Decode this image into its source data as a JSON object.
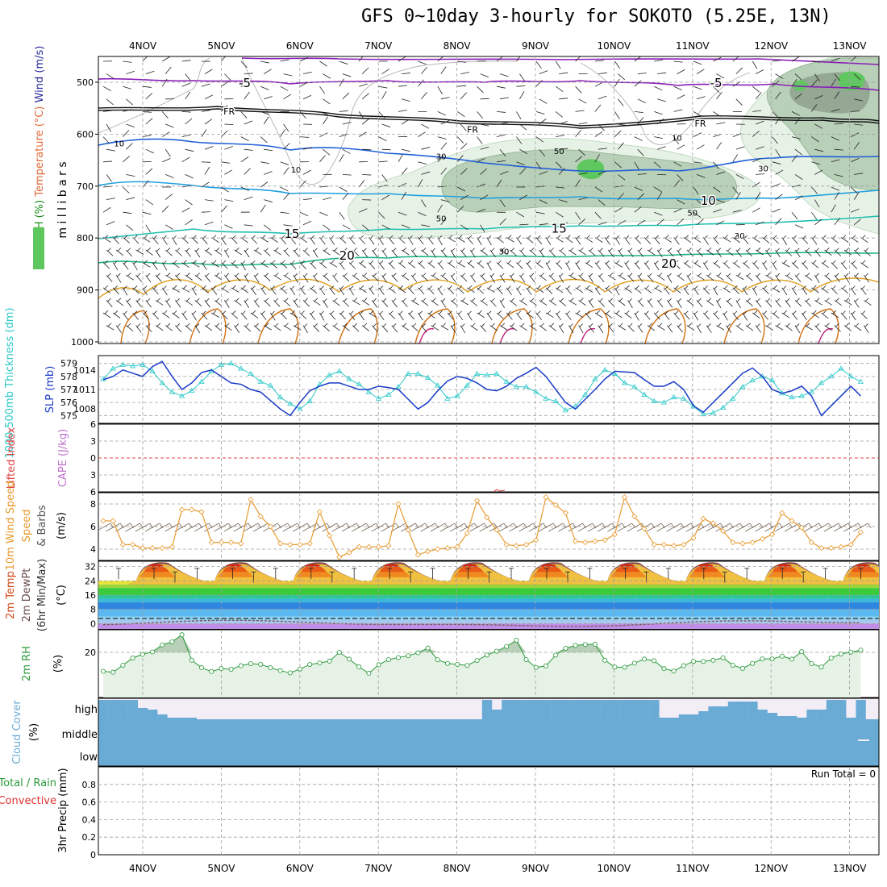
{
  "title": "GFS 0~10day 3-hourly for SOKOTO (5.25E, 13N)",
  "dates": [
    "4NOV",
    "5NOV",
    "6NOV",
    "7NOV",
    "8NOV",
    "9NOV",
    "10NOV",
    "11NOV",
    "12NOV",
    "13NOV"
  ],
  "colors": {
    "rh_light": "#e6f2e6",
    "rh_mid": "#b8cfb8",
    "rh_dark": "#94a894",
    "rh_green": "#5ec85e",
    "temp_purple": "#8a1fb8",
    "temp_black": "#111111",
    "temp_blue": "#1f5fd8",
    "temp_lblue": "#1fa0e0",
    "temp_teal": "#1fbfb0",
    "temp_green": "#1fb38a",
    "temp_orange": "#e0a020",
    "temp_dorange": "#d07010",
    "slp": "#1a3cc8",
    "thick": "#2ec8c8",
    "wind": "#e89a30",
    "rh2m": "#2a9a3a",
    "cloud": "#6aabd6",
    "cloud_bg": "#f3eef6",
    "lifted": "#e04040",
    "cape": "#c070d0"
  },
  "chart_data": [
    {
      "panel": "upper-air",
      "type": "contour",
      "ylabel_parts": [
        "RH (%)",
        "Temperature (°C)",
        "Wind (m/s)"
      ],
      "yunit": "m i l l i b a r s",
      "yticks": [
        500,
        600,
        700,
        800,
        900,
        1000
      ],
      "ylim": [
        1000,
        450
      ],
      "contour_labels": [
        {
          "text": "-5",
          "level": "-5",
          "day": 1.3,
          "p": 500
        },
        {
          "text": "-5",
          "level": "-5",
          "day": 7.3,
          "p": 500
        },
        {
          "text": "FR",
          "level": "0",
          "day": 1.1,
          "p": 553
        },
        {
          "text": "FR",
          "level": "0",
          "day": 4.2,
          "p": 588
        },
        {
          "text": "FR",
          "level": "0",
          "day": 7.1,
          "p": 576
        },
        {
          "text": "10",
          "level": "10",
          "day": 7.2,
          "p": 727
        },
        {
          "text": "15",
          "level": "15",
          "day": 1.9,
          "p": 790
        },
        {
          "text": "15",
          "level": "15",
          "day": 5.3,
          "p": 780
        },
        {
          "text": "20",
          "level": "20",
          "day": 2.6,
          "p": 832
        },
        {
          "text": "20",
          "level": "20",
          "day": 6.7,
          "p": 848
        }
      ],
      "rh_labels": [
        {
          "text": "10",
          "day": -0.3,
          "p": 617
        },
        {
          "text": "10",
          "day": 1.95,
          "p": 668
        },
        {
          "text": "10",
          "day": 6.8,
          "p": 606
        },
        {
          "text": "30",
          "day": 3.8,
          "p": 642
        },
        {
          "text": "30",
          "day": 4.6,
          "p": 825
        },
        {
          "text": "30",
          "day": 7.9,
          "p": 665
        },
        {
          "text": "30",
          "day": 7.6,
          "p": 795
        },
        {
          "text": "50",
          "day": 5.3,
          "p": 632
        },
        {
          "text": "50",
          "day": 3.8,
          "p": 762
        },
        {
          "text": "50",
          "day": 7.0,
          "p": 751
        }
      ]
    },
    {
      "panel": "slp-thickness",
      "type": "line",
      "ylabel": "1000-500mb Thickness (dm)",
      "ylabel2": "SLP (mb)",
      "ylim": [
        574.4,
        579.6
      ],
      "yticks": [
        575,
        576,
        577,
        578,
        579
      ],
      "y2lim": [
        1005.8,
        1016.2
      ],
      "y2ticks": [
        1008,
        1011,
        1014
      ],
      "series": [
        {
          "name": "SLP",
          "values": [
            1012.5,
            1013.0,
            1014.0,
            1013.5,
            1013.0,
            1014.5,
            1015.3,
            1013.0,
            1011.0,
            1012.0,
            1013.6,
            1014.0,
            1013.0,
            1012.0,
            1011.8,
            1011.0,
            1010.6,
            1009.3,
            1008.0,
            1007.0,
            1009.0,
            1010.8,
            1011.5,
            1012.0,
            1012.0,
            1011.5,
            1011.0,
            1011.0,
            1011.5,
            1011.3,
            1011.0,
            1009.5,
            1008.0,
            1009.0,
            1010.8,
            1012.3,
            1013.0,
            1012.7,
            1012.0,
            1011.0,
            1010.8,
            1011.5,
            1012.7,
            1013.5,
            1014.4,
            1013.0,
            1011.0,
            1009.0,
            1008.0,
            1009.5,
            1011.0,
            1012.6,
            1013.8,
            1013.7,
            1013.6,
            1012.5,
            1011.5,
            1011.5,
            1012.2,
            1011.0,
            1008.5,
            1007.5,
            1009.0,
            1010.5,
            1012.0,
            1013.5,
            1014.3,
            1013.0,
            1011.0,
            1010.4,
            1010.8,
            1011.5,
            1010.0,
            1007.0,
            1008.5,
            1010.0,
            1011.5,
            1010.0
          ]
        },
        {
          "name": "Thickness",
          "values": [
            577.8,
            578.6,
            578.9,
            578.8,
            578.9,
            578.4,
            577.5,
            576.8,
            576.5,
            576.9,
            577.6,
            578.4,
            578.9,
            579.0,
            578.6,
            578.2,
            577.6,
            577.3,
            576.4,
            575.9,
            575.5,
            576.1,
            577.4,
            578.1,
            578.4,
            577.8,
            577.4,
            576.8,
            576.3,
            576.6,
            577.2,
            578.2,
            578.2,
            577.9,
            577.3,
            576.3,
            576.5,
            577.3,
            578.2,
            578.1,
            578.2,
            577.6,
            577.2,
            577.2,
            576.8,
            576.3,
            576.1,
            575.4,
            575.7,
            576.6,
            577.8,
            578.5,
            578.2,
            577.5,
            577.2,
            576.6,
            576.1,
            576.0,
            576.4,
            576.3,
            575.7,
            575.1,
            575.2,
            575.6,
            576.3,
            577.2,
            577.7,
            578.0,
            577.7,
            576.7,
            576.4,
            576.5,
            576.8,
            577.5,
            578.0,
            578.6,
            578.0,
            577.6
          ]
        }
      ]
    },
    {
      "panel": "stability",
      "type": "line",
      "ylabel": "Lifted Index",
      "ylabel2": "CAPE (J/kg)",
      "yticks": [
        -6,
        -3,
        0,
        3,
        6
      ],
      "ytick_labels": [
        "6",
        "3",
        "0",
        "3",
        "6"
      ],
      "ylim": [
        -6,
        6
      ],
      "zero_line": 0
    },
    {
      "panel": "surface-wind",
      "type": "line",
      "ylabel": "10m Wind Speed",
      "ylabel2": "& Barbs",
      "yunit": "(m/s)",
      "ylim": [
        3,
        9
      ],
      "yticks": [
        4,
        6,
        8
      ],
      "series": [
        {
          "name": "Wind Speed",
          "values": [
            6.5,
            6.5,
            4.4,
            4.4,
            4.1,
            4.1,
            4.1,
            4.2,
            7.5,
            7.5,
            7.3,
            4.6,
            4.6,
            4.6,
            4.5,
            8.4,
            6.9,
            6.0,
            4.5,
            4.4,
            4.4,
            4.5,
            7.3,
            5.2,
            3.3,
            3.7,
            4.2,
            4.2,
            4.2,
            4.3,
            8.0,
            5.7,
            3.5,
            3.8,
            4.0,
            4.1,
            4.2,
            5.4,
            8.3,
            6.8,
            5.7,
            4.4,
            4.3,
            4.4,
            4.8,
            8.6,
            7.9,
            7.2,
            4.7,
            4.6,
            4.7,
            4.8,
            5.3,
            8.6,
            6.9,
            5.8,
            4.4,
            4.4,
            4.3,
            4.4,
            5.0,
            6.7,
            6.3,
            5.6,
            4.6,
            4.5,
            4.6,
            4.9,
            5.3,
            7.2,
            6.5,
            5.9,
            4.6,
            4.1,
            4.1,
            4.2,
            4.4,
            5.5
          ]
        }
      ]
    },
    {
      "panel": "temperature",
      "type": "area",
      "ylabel": "2m Temp",
      "ylabel2": "2m DewPt",
      "ylabel3": "(6hr Min/Max)",
      "yunit": "(°C)",
      "ylim": [
        -3,
        35
      ],
      "yticks": [
        0,
        8,
        16,
        24,
        32
      ],
      "temp_min": 23,
      "temp_max": 35,
      "dewpoint_range": [
        -2,
        2
      ]
    },
    {
      "panel": "rh2m",
      "type": "line",
      "ylabel": "2m RH",
      "yunit": "(%)",
      "ylim": [
        0,
        30
      ],
      "yticks": [
        20
      ],
      "series": [
        {
          "name": "2m RH",
          "values": [
            11.6,
            11.2,
            14.3,
            17.5,
            19.1,
            20.2,
            23.3,
            24.7,
            27.8,
            16.5,
            13.2,
            11.5,
            12.8,
            12.5,
            14.1,
            15.0,
            14.7,
            13.2,
            11.9,
            10.9,
            12.6,
            14.6,
            15.3,
            16.1,
            20.0,
            17.0,
            13.6,
            10.7,
            14.5,
            16.8,
            17.7,
            18.5,
            19.8,
            21.9,
            16.7,
            15.1,
            14.7,
            14.2,
            16.4,
            18.8,
            20.5,
            22.6,
            25.4,
            16.8,
            13.3,
            14.0,
            18.8,
            21.8,
            23.1,
            23.5,
            23.6,
            16.5,
            13.5,
            13.4,
            15.2,
            17.0,
            16.3,
            12.8,
            11.7,
            14.1,
            16.0,
            16.0,
            16.5,
            17.6,
            14.3,
            12.9,
            15.1,
            17.1,
            17.1,
            18.3,
            17.0,
            20.3,
            15.0,
            13.5,
            17.5,
            19.3,
            20.1,
            21.0
          ]
        }
      ]
    },
    {
      "panel": "cloud",
      "type": "area",
      "ylabel": "Cloud Cover",
      "yunit": "(%)",
      "levels": [
        "high",
        "middle",
        "low"
      ]
    },
    {
      "panel": "precip",
      "type": "bar",
      "ylabel": "Total / Rain",
      "ylabel_convective": "Convective",
      "ylabel2": "3hr Precip (mm)",
      "ylim": [
        0,
        1
      ],
      "yticks": [
        0,
        0.2,
        0.4,
        0.6,
        0.8
      ],
      "run_total_label": "Run Total = 0",
      "values": []
    }
  ]
}
